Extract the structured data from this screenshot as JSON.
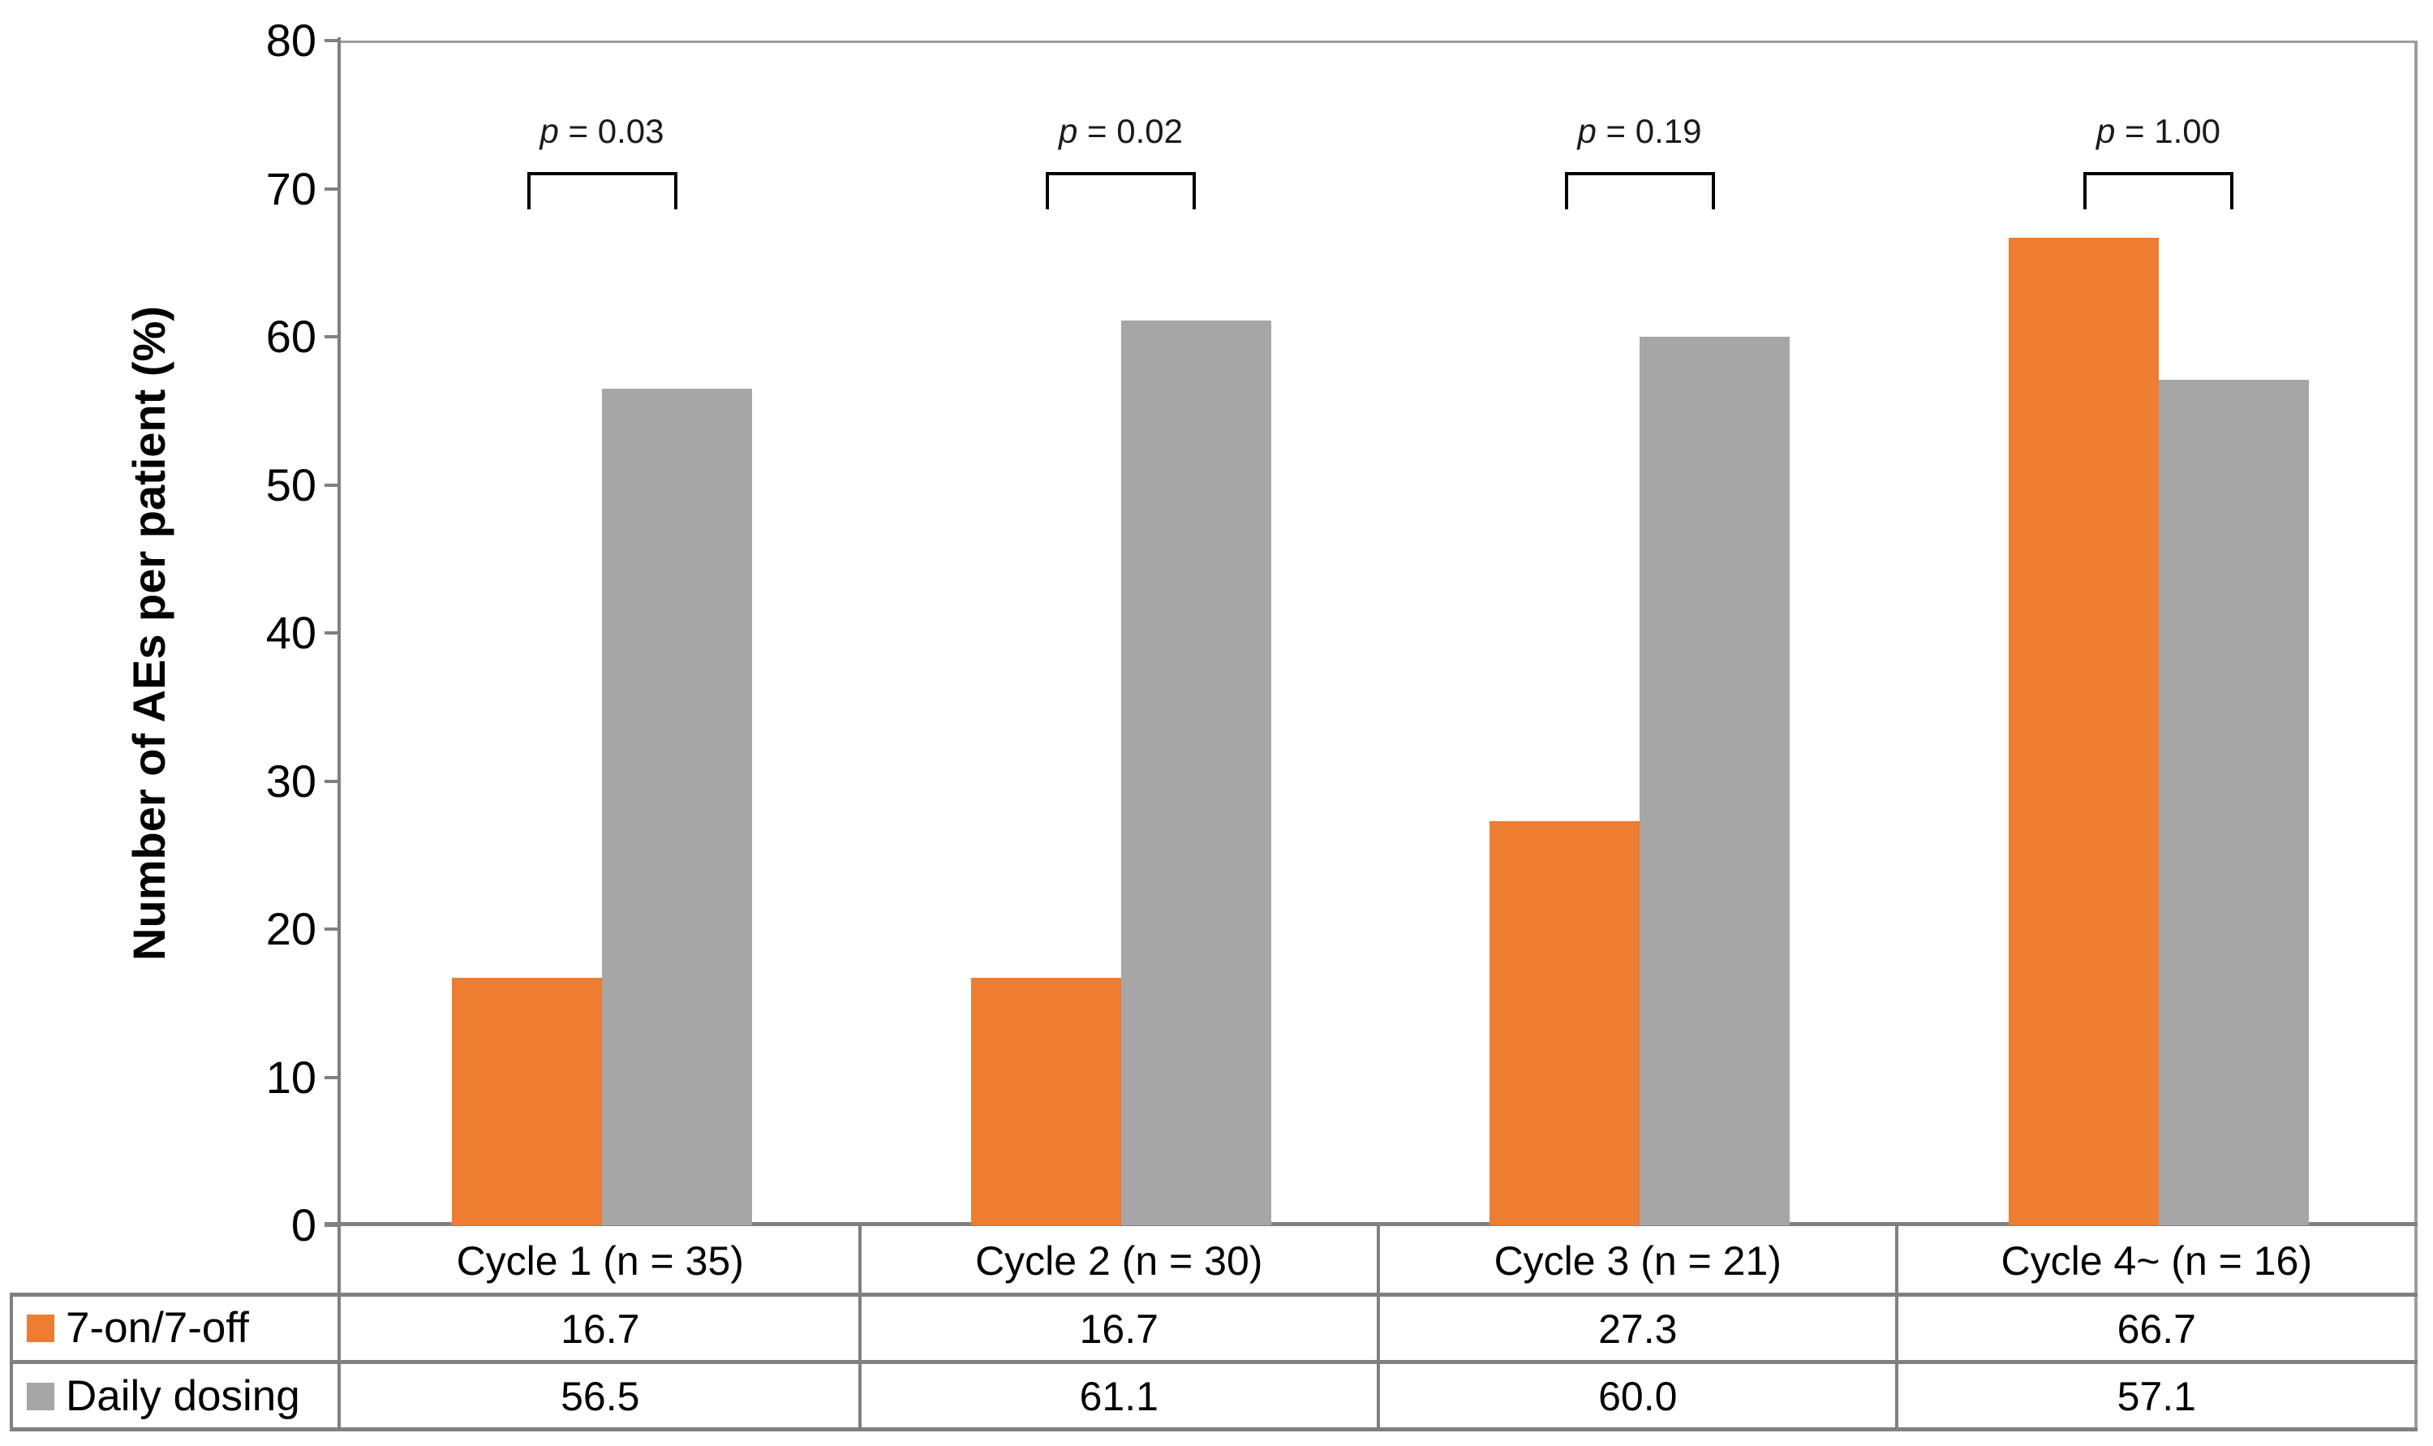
{
  "chart_data": {
    "type": "bar",
    "title": "",
    "ylabel": "Number of AEs per patient (%)",
    "xlabel": "",
    "ylim": [
      0,
      80
    ],
    "yticks": [
      0,
      10,
      20,
      30,
      40,
      50,
      60,
      70,
      80
    ],
    "grid": false,
    "legend_position": "data-table-left",
    "categories": [
      "Cycle 1 (n = 35)",
      "Cycle 2 (n = 30)",
      "Cycle 3 (n = 21)",
      "Cycle 4~ (n = 16)"
    ],
    "series": [
      {
        "name": "7-on/7-off",
        "color": "#ED7D31",
        "values": [
          16.7,
          16.7,
          27.3,
          66.7
        ],
        "values_display": [
          "16.7",
          "16.7",
          "27.3",
          "66.7"
        ]
      },
      {
        "name": "Daily dosing",
        "color": "#A6A6A6",
        "values": [
          56.5,
          61.1,
          60.0,
          57.1
        ],
        "values_display": [
          "56.5",
          "61.1",
          "60.0",
          "57.1"
        ]
      }
    ],
    "significance": [
      {
        "var": "p",
        "rest": " = 0.03"
      },
      {
        "var": "p",
        "rest": " = 0.02"
      },
      {
        "var": "p",
        "rest": " = 0.19"
      },
      {
        "var": "p",
        "rest": " = 1.00"
      }
    ]
  },
  "colors": {
    "axis": "#808080",
    "table_line": "#808080",
    "plot_border": "#9E9E9E",
    "text": "#000000"
  }
}
